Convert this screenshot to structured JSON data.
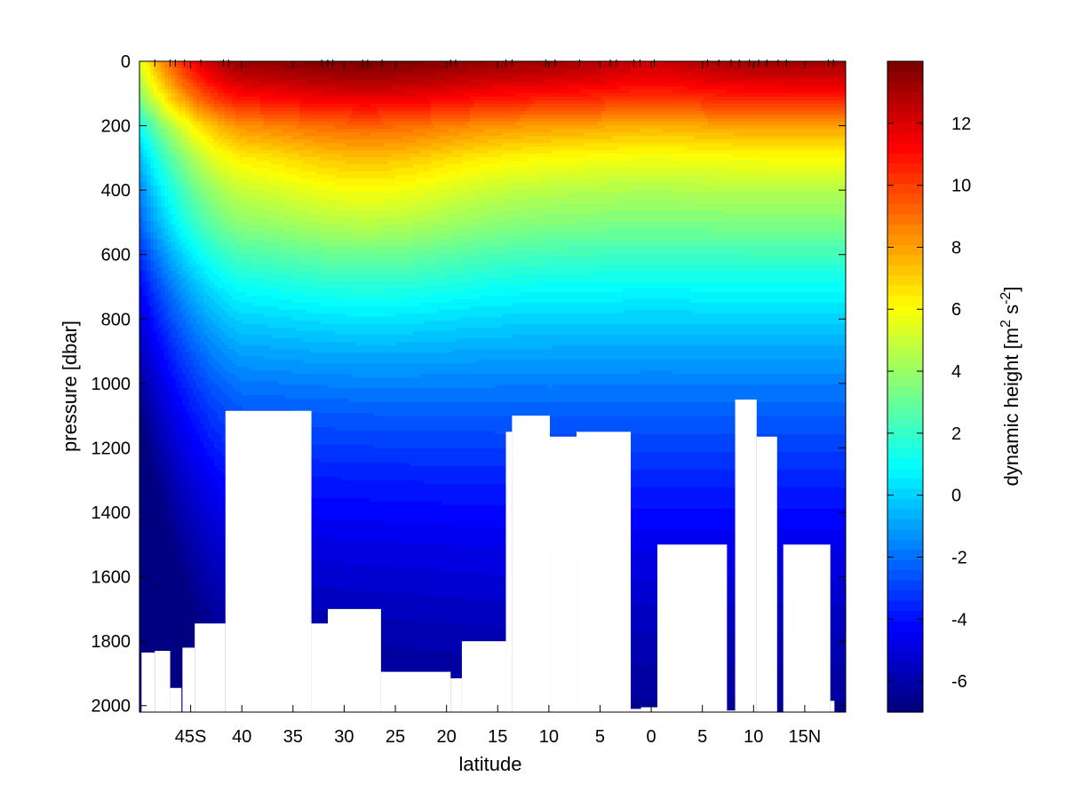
{
  "chart_data": {
    "type": "heatmap",
    "xlabel": "latitude",
    "ylabel": "pressure [dbar]",
    "colorbar_label": "dynamic height [m",
    "colorbar_label_sup1": "2",
    "colorbar_label_mid": " s",
    "colorbar_label_sup2": "-2",
    "colorbar_label_end": "]",
    "xlim": [
      -50,
      19
    ],
    "ylim": [
      2020,
      0
    ],
    "x_ticks": [
      {
        "value": -45,
        "label": "45S"
      },
      {
        "value": -40,
        "label": "40"
      },
      {
        "value": -35,
        "label": "35"
      },
      {
        "value": -30,
        "label": "30"
      },
      {
        "value": -25,
        "label": "25"
      },
      {
        "value": -20,
        "label": "20"
      },
      {
        "value": -15,
        "label": "15"
      },
      {
        "value": -10,
        "label": "10"
      },
      {
        "value": -5,
        "label": "5"
      },
      {
        "value": 0,
        "label": "0"
      },
      {
        "value": 5,
        "label": "5"
      },
      {
        "value": 10,
        "label": "10"
      },
      {
        "value": 15,
        "label": "15N"
      }
    ],
    "y_ticks": [
      {
        "value": 0,
        "label": "0"
      },
      {
        "value": 200,
        "label": "200"
      },
      {
        "value": 400,
        "label": "400"
      },
      {
        "value": 600,
        "label": "600"
      },
      {
        "value": 800,
        "label": "800"
      },
      {
        "value": 1000,
        "label": "1000"
      },
      {
        "value": 1200,
        "label": "1200"
      },
      {
        "value": 1400,
        "label": "1400"
      },
      {
        "value": 1600,
        "label": "1600"
      },
      {
        "value": 1800,
        "label": "1800"
      },
      {
        "value": 2000,
        "label": "2000"
      }
    ],
    "colorbar": {
      "min": -7,
      "max": 14,
      "ticks": [
        {
          "value": -6,
          "label": "-6"
        },
        {
          "value": -4,
          "label": "-4"
        },
        {
          "value": -2,
          "label": "-2"
        },
        {
          "value": 0,
          "label": "0"
        },
        {
          "value": 2,
          "label": "2"
        },
        {
          "value": 4,
          "label": "4"
        },
        {
          "value": 6,
          "label": "6"
        },
        {
          "value": 8,
          "label": "8"
        },
        {
          "value": 10,
          "label": "10"
        },
        {
          "value": 12,
          "label": "12"
        }
      ],
      "colormap": "jet"
    },
    "station_latitudes": [
      -48.5,
      -47.0,
      -46.5,
      -45.6,
      -44.0,
      -41.8,
      -41.3,
      -32.2,
      -31.6,
      -31.1,
      -28.2,
      -27.7,
      -26.3,
      -19.6,
      -19.1,
      -14.2,
      -13.6,
      -10.3,
      -9.4,
      -7.0,
      -4.0,
      -3.4,
      -1.7,
      -1.1,
      0.3,
      5.5,
      6.6,
      7.8,
      8.6,
      9.6,
      10.5,
      11.3,
      12.4,
      13.2,
      17.3,
      17.8
    ],
    "field_profile_pressure": [
      0,
      60,
      120,
      200,
      300,
      400,
      500,
      600,
      700,
      800,
      900,
      1000,
      1100,
      1200,
      1300,
      1400,
      1500,
      1600,
      1700,
      1800,
      1900,
      2000
    ],
    "field_profile_value_midbasin": [
      13.2,
      12.0,
      10.5,
      8.0,
      6.0,
      4.6,
      3.5,
      2.2,
      1.0,
      0.0,
      -0.9,
      -1.7,
      -2.4,
      -3.0,
      -3.6,
      -4.1,
      -4.6,
      -5.0,
      -5.4,
      -5.8,
      -6.1,
      -6.4
    ],
    "bottom_gaps": [
      {
        "lat_start": -49.8,
        "lat_end": -48.5,
        "pressure_top": 1835
      },
      {
        "lat_start": -48.5,
        "lat_end": -47.0,
        "pressure_top": 1830
      },
      {
        "lat_start": -47.0,
        "lat_end": -45.9,
        "pressure_top": 1945
      },
      {
        "lat_start": -45.8,
        "lat_end": -44.6,
        "pressure_top": 1820
      },
      {
        "lat_start": -44.6,
        "lat_end": -41.6,
        "pressure_top": 1745
      },
      {
        "lat_start": -41.6,
        "lat_end": -33.2,
        "pressure_top": 1085
      },
      {
        "lat_start": -33.2,
        "lat_end": -31.6,
        "pressure_top": 1745
      },
      {
        "lat_start": -31.6,
        "lat_end": -26.4,
        "pressure_top": 1700
      },
      {
        "lat_start": -26.4,
        "lat_end": -19.6,
        "pressure_top": 1895
      },
      {
        "lat_start": -19.6,
        "lat_end": -18.5,
        "pressure_top": 1915
      },
      {
        "lat_start": -18.5,
        "lat_end": -14.2,
        "pressure_top": 1800
      },
      {
        "lat_start": -14.2,
        "lat_end": -13.6,
        "pressure_top": 1150
      },
      {
        "lat_start": -13.6,
        "lat_end": -9.9,
        "pressure_top": 1100
      },
      {
        "lat_start": -9.9,
        "lat_end": -7.3,
        "pressure_top": 1165
      },
      {
        "lat_start": -7.3,
        "lat_end": -2.0,
        "pressure_top": 1150
      },
      {
        "lat_start": -2.0,
        "lat_end": -1.0,
        "pressure_top": 2010
      },
      {
        "lat_start": -1.0,
        "lat_end": 0.6,
        "pressure_top": 2005
      },
      {
        "lat_start": 0.6,
        "lat_end": 7.4,
        "pressure_top": 1500
      },
      {
        "lat_start": 7.4,
        "lat_end": 8.2,
        "pressure_top": 2015
      },
      {
        "lat_start": 8.2,
        "lat_end": 10.3,
        "pressure_top": 1050
      },
      {
        "lat_start": 10.3,
        "lat_end": 12.3,
        "pressure_top": 1165
      },
      {
        "lat_start": 12.9,
        "lat_end": 17.5,
        "pressure_top": 1500
      },
      {
        "lat_start": 17.5,
        "lat_end": 17.9,
        "pressure_top": 1985
      }
    ]
  }
}
